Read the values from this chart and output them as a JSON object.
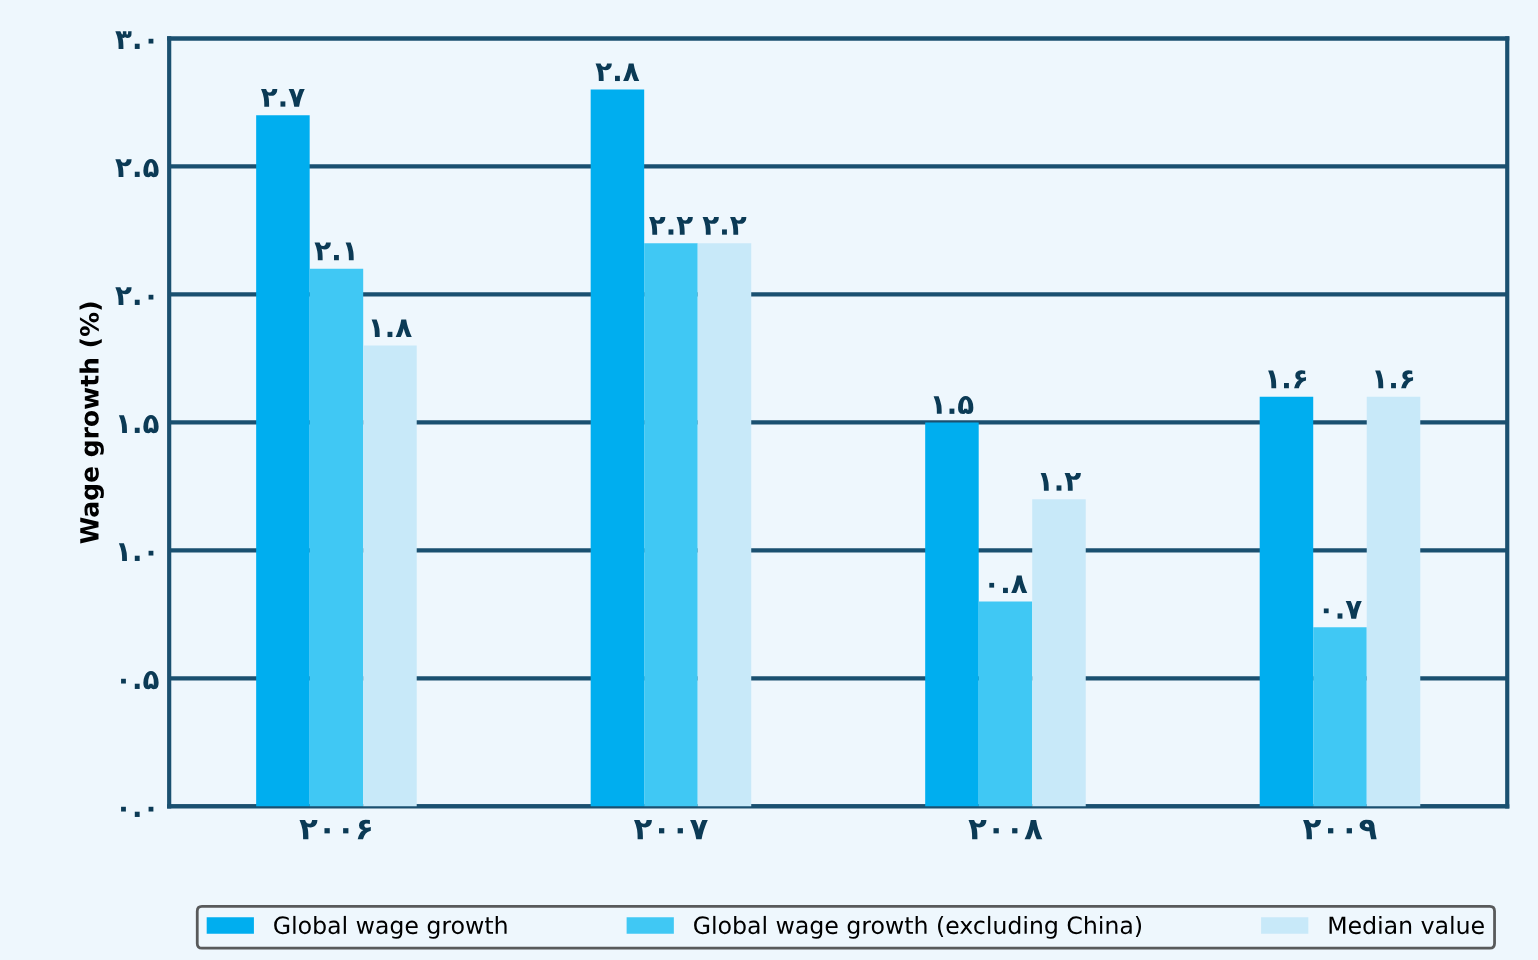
{
  "chart_data": {
    "type": "bar",
    "ylabel": "Wage growth (%)",
    "categories": [
      "۲۰۰۶",
      "۲۰۰۷",
      "۲۰۰۸",
      "۲۰۰۹"
    ],
    "series": [
      {
        "name": "Global wage growth",
        "color": "#00aeef",
        "values": [
          2.7,
          2.8,
          1.5,
          1.6
        ],
        "value_labels": [
          "۲.۷",
          "۲.۸",
          "۱.۵",
          "۱.۶"
        ]
      },
      {
        "name": "Global wage growth (excluding China)",
        "color": "#40c8f4",
        "values": [
          2.1,
          2.2,
          0.8,
          0.7
        ],
        "value_labels": [
          "۲.۱",
          "۲.۲",
          "۰.۸",
          "۰.۷"
        ]
      },
      {
        "name": "Median value",
        "color": "#c8e9f9",
        "values": [
          1.8,
          2.2,
          1.2,
          1.6
        ],
        "value_labels": [
          "۱.۸",
          "۲.۲",
          "۱.۲",
          "۱.۶"
        ]
      }
    ],
    "ylim": [
      0,
      3
    ],
    "yticks": [
      {
        "value": 0,
        "label": "۰.۰"
      },
      {
        "value": 0.5,
        "label": "۰.۵"
      },
      {
        "value": 1,
        "label": "۱.۰"
      },
      {
        "value": 1.5,
        "label": "۱.۵"
      },
      {
        "value": 2,
        "label": "۲.۰"
      },
      {
        "value": 2.5,
        "label": "۲.۵"
      },
      {
        "value": 3,
        "label": "۳.۰"
      }
    ],
    "grid": "y",
    "legend": "bottom"
  }
}
